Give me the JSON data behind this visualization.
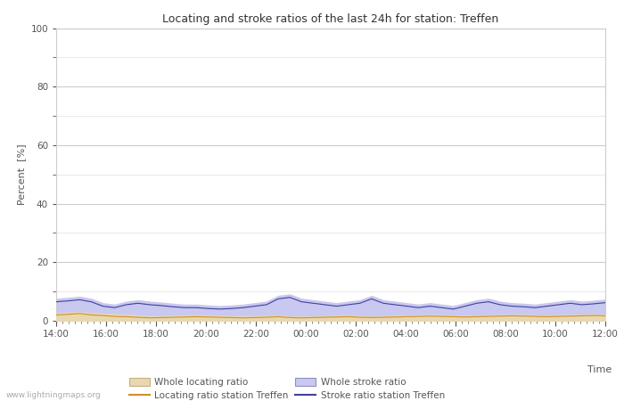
{
  "title": "Locating and stroke ratios of the last 24h for station: Treffen",
  "xlabel": "Time",
  "ylabel": "Percent  [%]",
  "ylim": [
    0,
    100
  ],
  "yticks": [
    0,
    20,
    40,
    60,
    80,
    100
  ],
  "yticks_minor": [
    10,
    30,
    50,
    70,
    90
  ],
  "time_labels": [
    "14:00",
    "16:00",
    "18:00",
    "20:00",
    "22:00",
    "00:00",
    "02:00",
    "04:00",
    "06:00",
    "08:00",
    "10:00",
    "12:00"
  ],
  "background_color": "#ffffff",
  "plot_bg_color": "#ffffff",
  "grid_color": "#cccccc",
  "watermark": "www.lightningmaps.org",
  "whole_locating_color": "#e8d8b0",
  "whole_locating_edge": "#c8b080",
  "whole_stroke_color": "#c8c8f0",
  "whole_stroke_edge": "#9090c0",
  "locating_line_color": "#d0902a",
  "stroke_line_color": "#4040a0",
  "legend_labels": [
    "Whole locating ratio",
    "Locating ratio station Treffen",
    "Whole stroke ratio",
    "Stroke ratio station Treffen"
  ],
  "whole_locating_values": [
    2.5,
    2.8,
    3.0,
    2.6,
    2.4,
    2.2,
    2.0,
    1.8,
    1.5,
    1.6,
    1.7,
    1.8,
    1.9,
    1.8,
    1.7,
    1.6,
    1.5,
    1.6,
    1.7,
    1.8,
    1.5,
    1.4,
    1.5,
    1.6,
    1.7,
    1.8,
    1.6,
    1.5,
    1.6,
    1.7,
    1.8,
    1.9,
    2.0,
    1.9,
    1.8,
    1.7,
    1.8,
    1.9,
    2.0,
    2.1,
    2.0,
    1.9,
    1.8,
    1.9,
    2.0,
    2.1,
    2.2,
    2.1
  ],
  "whole_stroke_values": [
    7.5,
    7.8,
    8.2,
    7.5,
    6.0,
    5.5,
    6.5,
    7.0,
    6.5,
    6.2,
    5.8,
    5.5,
    5.5,
    5.2,
    5.0,
    5.2,
    5.5,
    6.0,
    6.5,
    8.5,
    9.0,
    7.5,
    7.0,
    6.5,
    6.0,
    6.5,
    7.0,
    8.5,
    7.0,
    6.5,
    6.0,
    5.5,
    6.0,
    5.5,
    5.0,
    6.0,
    7.0,
    7.5,
    6.5,
    6.0,
    5.8,
    5.5,
    6.0,
    6.5,
    7.0,
    6.5,
    6.8,
    7.2
  ],
  "locating_station_values": [
    2.0,
    2.2,
    2.5,
    2.0,
    1.8,
    1.5,
    1.4,
    1.2,
    1.0,
    1.1,
    1.2,
    1.3,
    1.4,
    1.3,
    1.2,
    1.1,
    1.0,
    1.1,
    1.2,
    1.4,
    1.1,
    1.0,
    1.1,
    1.2,
    1.3,
    1.4,
    1.2,
    1.1,
    1.2,
    1.3,
    1.4,
    1.5,
    1.6,
    1.5,
    1.4,
    1.3,
    1.4,
    1.5,
    1.6,
    1.7,
    1.6,
    1.5,
    1.4,
    1.5,
    1.6,
    1.7,
    1.8,
    1.7
  ],
  "stroke_station_values": [
    6.5,
    6.8,
    7.2,
    6.5,
    5.0,
    4.5,
    5.5,
    6.0,
    5.5,
    5.2,
    4.8,
    4.5,
    4.5,
    4.2,
    4.0,
    4.2,
    4.5,
    5.0,
    5.5,
    7.5,
    8.0,
    6.5,
    6.0,
    5.5,
    5.0,
    5.5,
    6.0,
    7.5,
    6.0,
    5.5,
    5.0,
    4.5,
    5.0,
    4.5,
    4.0,
    5.0,
    6.0,
    6.5,
    5.5,
    5.0,
    4.8,
    4.5,
    5.0,
    5.5,
    6.0,
    5.5,
    5.8,
    6.2
  ],
  "n_points": 48
}
